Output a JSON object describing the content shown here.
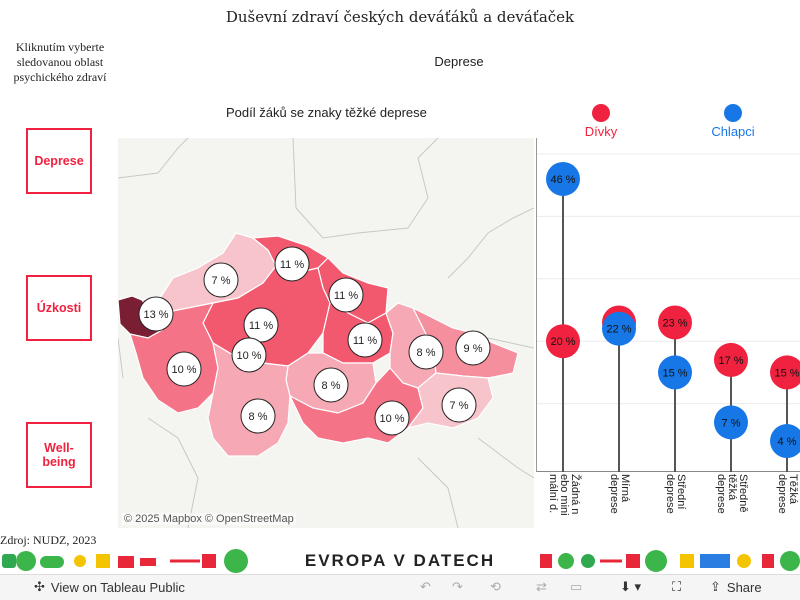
{
  "title": "Duševní zdraví českých deváťáků a deváťaček",
  "hint": "Kliknutím vyberte sledovanou oblast psychického zdraví",
  "selected_area": "Deprese",
  "nav": [
    {
      "label": "Deprese"
    },
    {
      "label": "Úzkosti"
    },
    {
      "label": "Well-being"
    }
  ],
  "map": {
    "title": "Podíl žáků se znaky těžké deprese",
    "attribution": "© 2025 Mapbox  © OpenStreetMap",
    "regions": [
      {
        "value": "13 %",
        "pct": 13
      },
      {
        "value": "7 %",
        "pct": 7
      },
      {
        "value": "11 %",
        "pct": 11
      },
      {
        "value": "11 %",
        "pct": 11
      },
      {
        "value": "11 %",
        "pct": 11
      },
      {
        "value": "10 %",
        "pct": 10
      },
      {
        "value": "10 %",
        "pct": 10
      },
      {
        "value": "11 %",
        "pct": 11
      },
      {
        "value": "8 %",
        "pct": 8
      },
      {
        "value": "9 %",
        "pct": 9
      },
      {
        "value": "8 %",
        "pct": 8
      },
      {
        "value": "8 %",
        "pct": 8
      },
      {
        "value": "10 %",
        "pct": 10
      },
      {
        "value": "7 %",
        "pct": 7
      }
    ]
  },
  "legend": {
    "girls": {
      "label": "Dívky",
      "color": "#f0223f"
    },
    "boys": {
      "label": "Chlapci",
      "color": "#1877e6"
    }
  },
  "chart_data": {
    "type": "scatter",
    "categories": [
      "Žádná nebo minimální d.",
      "Mírná deprese",
      "Střední deprese",
      "Středně těžká deprese",
      "Těžká deprese"
    ],
    "category_labels": [
      "Žádná n\nebo mini\nmální d.",
      "Mírná\ndeprese",
      "Střední\ndeprese",
      "Středně\ntěžká\ndeprese",
      "Těžká\ndeprese"
    ],
    "series": [
      {
        "name": "Dívky",
        "color": "#f0223f",
        "values": [
          20,
          23,
          23,
          17,
          15
        ],
        "labels": [
          "20 %",
          "23 %",
          "23 %",
          "17 %",
          "15 %"
        ]
      },
      {
        "name": "Chlapci",
        "color": "#1877e6",
        "values": [
          46,
          22,
          15,
          7,
          4
        ],
        "labels": [
          "46 %",
          "22 %",
          "15 %",
          "7 %",
          "4 %"
        ]
      }
    ],
    "ylim": [
      0,
      50
    ],
    "grid": true
  },
  "source": "Zdroj: NUDZ, 2023",
  "brand": "EVROPA V DATECH",
  "toolbar": {
    "view_label": "View on Tableau Public",
    "share_label": "Share"
  }
}
